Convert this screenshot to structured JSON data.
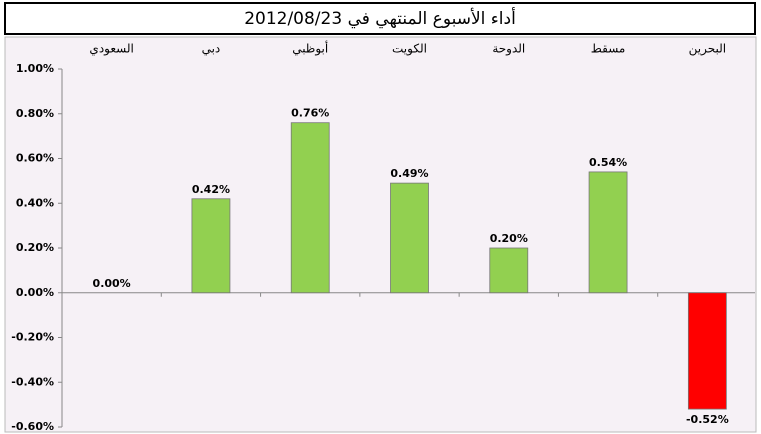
{
  "chart_data": {
    "type": "bar",
    "title": "أداء الأسبوع المنتهي في 2012/08/23",
    "categories": [
      "السعودي",
      "دبي",
      "أبوظبي",
      "الكويت",
      "الدوحة",
      "مسقط",
      "البحرين"
    ],
    "values": [
      0,
      0.42,
      0.76,
      0.49,
      0.2,
      0.54,
      -0.52
    ],
    "value_labels": [
      "0.00%",
      "0.42%",
      "0.76%",
      "0.49%",
      "0.20%",
      "0.54%",
      "-0.52%"
    ],
    "colors": [
      "#92d050",
      "#92d050",
      "#92d050",
      "#92d050",
      "#92d050",
      "#92d050",
      "#ff0000"
    ],
    "ylim": [
      -0.6,
      1.0
    ],
    "yticks": [
      {
        "value": -0.6,
        "label": "-0.60%"
      },
      {
        "value": -0.4,
        "label": "-0.40%"
      },
      {
        "value": -0.2,
        "label": "-0.20%"
      },
      {
        "value": 0,
        "label": "0.00%"
      },
      {
        "value": 0.2,
        "label": "0.20%"
      },
      {
        "value": 0.4,
        "label": "0.40%"
      },
      {
        "value": 0.6,
        "label": "0.60%"
      },
      {
        "value": 0.8,
        "label": "0.80%"
      },
      {
        "value": 1.0,
        "label": "1.00%"
      }
    ]
  }
}
